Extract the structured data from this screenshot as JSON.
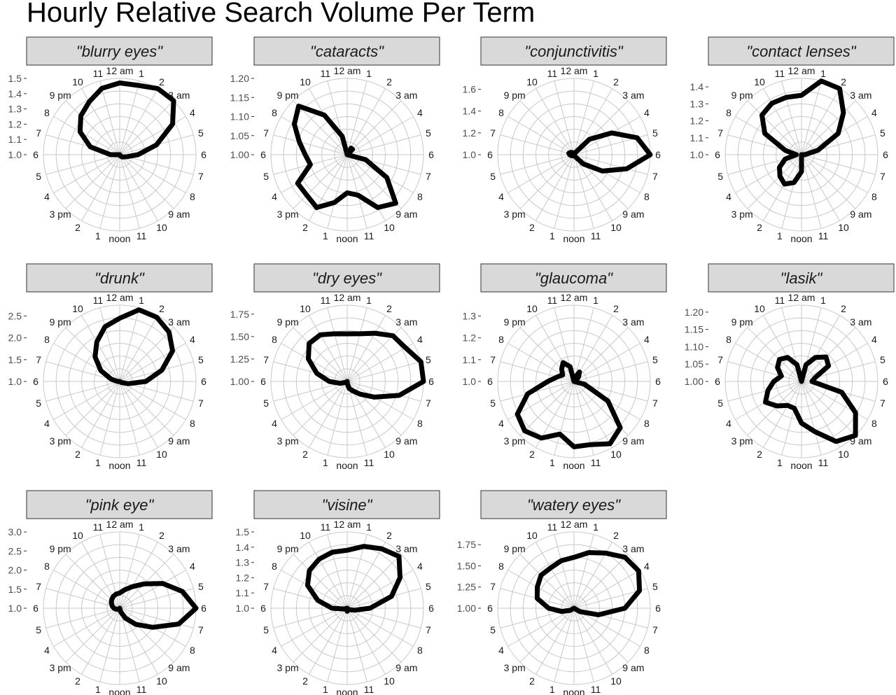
{
  "chart_data": {
    "type": "radar",
    "title": "Hourly Relative Search Volume Per Term",
    "hour_labels": [
      "12 am",
      "1",
      "2",
      "3 am",
      "4",
      "5",
      "6",
      "7",
      "8",
      "9 am",
      "10",
      "11",
      "noon",
      "1",
      "2",
      "3 pm",
      "4",
      "5",
      "6",
      "7",
      "8",
      "9 pm",
      "10",
      "11"
    ],
    "grid": true,
    "panels": [
      {
        "name": "\"blurry eyes\"",
        "rmin": 1.0,
        "rmax": 1.5,
        "ticks": [
          "1.0",
          "1.1",
          "1.2",
          "1.3",
          "1.4",
          "1.5"
        ],
        "values": [
          1.47,
          1.47,
          1.5,
          1.5,
          1.4,
          1.25,
          1.12,
          1.05,
          1.03,
          1.02,
          1.01,
          1.0,
          1.0,
          1.0,
          1.0,
          1.0,
          1.0,
          1.0,
          1.06,
          1.2,
          1.3,
          1.36,
          1.4,
          1.45
        ]
      },
      {
        "name": "\"cataracts\"",
        "rmin": 1.0,
        "rmax": 1.2,
        "ticks": [
          "1.00",
          "1.05",
          "1.10",
          "1.15",
          "1.20"
        ],
        "values": [
          1.0,
          1.0,
          1.02,
          1.02,
          1.0,
          1.0,
          1.0,
          1.05,
          1.12,
          1.18,
          1.16,
          1.11,
          1.1,
          1.13,
          1.16,
          1.15,
          1.15,
          1.1,
          1.11,
          1.13,
          1.16,
          1.18,
          1.12,
          1.05
        ]
      },
      {
        "name": "\"conjunctivitis\"",
        "rmin": 1.0,
        "rmax": 1.7,
        "ticks": [
          "1.0",
          "1.2",
          "1.4",
          "1.6"
        ],
        "values": [
          1.0,
          1.0,
          1.02,
          1.2,
          1.4,
          1.6,
          1.7,
          1.5,
          1.3,
          1.12,
          1.02,
          1.0,
          1.0,
          1.0,
          1.0,
          1.0,
          1.02,
          1.03,
          1.04,
          1.05,
          1.04,
          1.03,
          1.02,
          1.01
        ]
      },
      {
        "name": "\"contact lenses\"",
        "rmin": 1.0,
        "rmax": 1.45,
        "ticks": [
          "1.0",
          "1.1",
          "1.2",
          "1.3",
          "1.4"
        ],
        "values": [
          1.35,
          1.45,
          1.45,
          1.35,
          1.25,
          1.1,
          1.02,
          1.0,
          1.0,
          1.0,
          1.0,
          1.0,
          1.1,
          1.17,
          1.2,
          1.18,
          1.15,
          1.1,
          1.03,
          1.1,
          1.25,
          1.33,
          1.35,
          1.35
        ]
      },
      {
        "name": "\"drunk\"",
        "rmin": 1.0,
        "rmax": 2.75,
        "ticks": [
          "1.0",
          "1.5",
          "2.0",
          "2.5"
        ],
        "values": [
          2.45,
          2.7,
          2.7,
          2.6,
          2.4,
          2.0,
          1.6,
          1.2,
          1.05,
          1.0,
          1.0,
          1.0,
          1.0,
          1.0,
          1.0,
          1.0,
          1.0,
          1.0,
          1.05,
          1.2,
          1.5,
          1.8,
          2.05,
          2.3
        ]
      },
      {
        "name": "\"dry eyes\"",
        "rmin": 1.0,
        "rmax": 1.85,
        "ticks": [
          "1.00",
          "1.25",
          "1.50",
          "1.75"
        ],
        "values": [
          1.53,
          1.55,
          1.62,
          1.72,
          1.75,
          1.85,
          1.85,
          1.6,
          1.35,
          1.2,
          1.12,
          1.08,
          1.02,
          1.0,
          1.0,
          1.0,
          1.02,
          1.08,
          1.2,
          1.35,
          1.5,
          1.6,
          1.6,
          1.55
        ]
      },
      {
        "name": "\"glaucoma\"",
        "rmin": 1.0,
        "rmax": 1.35,
        "ticks": [
          "1.0",
          "1.1",
          "1.2",
          "1.3"
        ],
        "values": [
          1.0,
          1.02,
          1.05,
          1.03,
          1.01,
          1.0,
          1.0,
          1.05,
          1.18,
          1.3,
          1.33,
          1.3,
          1.3,
          1.25,
          1.3,
          1.32,
          1.3,
          1.22,
          1.12,
          1.08,
          1.06,
          1.08,
          1.1,
          1.07
        ]
      },
      {
        "name": "\"lasik\"",
        "rmin": 1.0,
        "rmax": 1.22,
        "ticks": [
          "1.00",
          "1.05",
          "1.10",
          "1.15",
          "1.20"
        ],
        "values": [
          1.0,
          1.05,
          1.08,
          1.1,
          1.09,
          1.04,
          1.03,
          1.12,
          1.18,
          1.22,
          1.2,
          1.15,
          1.12,
          1.08,
          1.08,
          1.1,
          1.12,
          1.1,
          1.08,
          1.06,
          1.08,
          1.09,
          1.08,
          1.05
        ]
      },
      {
        "name": "\"pink eye\"",
        "rmin": 1.0,
        "rmax": 3.0,
        "ticks": [
          "1.0",
          "1.5",
          "2.0",
          "2.5",
          "3.0"
        ],
        "values": [
          1.4,
          1.5,
          1.65,
          1.9,
          2.3,
          2.7,
          3.0,
          2.6,
          2.0,
          1.6,
          1.3,
          1.1,
          1.0,
          1.0,
          1.02,
          1.03,
          1.06,
          1.1,
          1.15,
          1.2,
          1.25,
          1.3,
          1.35,
          1.38
        ]
      },
      {
        "name": "\"visine\"",
        "rmin": 1.0,
        "rmax": 1.5,
        "ticks": [
          "1.0",
          "1.1",
          "1.2",
          "1.3",
          "1.4",
          "1.5"
        ],
        "values": [
          1.38,
          1.42,
          1.45,
          1.48,
          1.4,
          1.3,
          1.15,
          1.05,
          1.02,
          1.01,
          1.0,
          1.0,
          1.02,
          1.0,
          1.0,
          1.0,
          1.0,
          1.02,
          1.1,
          1.2,
          1.3,
          1.35,
          1.37,
          1.38
        ]
      },
      {
        "name": "\"watery eyes\"",
        "rmin": 1.0,
        "rmax": 1.9,
        "ticks": [
          "1.00",
          "1.25",
          "1.50",
          "1.75"
        ],
        "values": [
          1.6,
          1.68,
          1.75,
          1.85,
          1.88,
          1.8,
          1.6,
          1.3,
          1.08,
          1.0,
          1.0,
          1.0,
          1.0,
          1.0,
          1.0,
          1.0,
          1.05,
          1.15,
          1.3,
          1.45,
          1.5,
          1.55,
          1.55,
          1.58
        ]
      }
    ]
  }
}
